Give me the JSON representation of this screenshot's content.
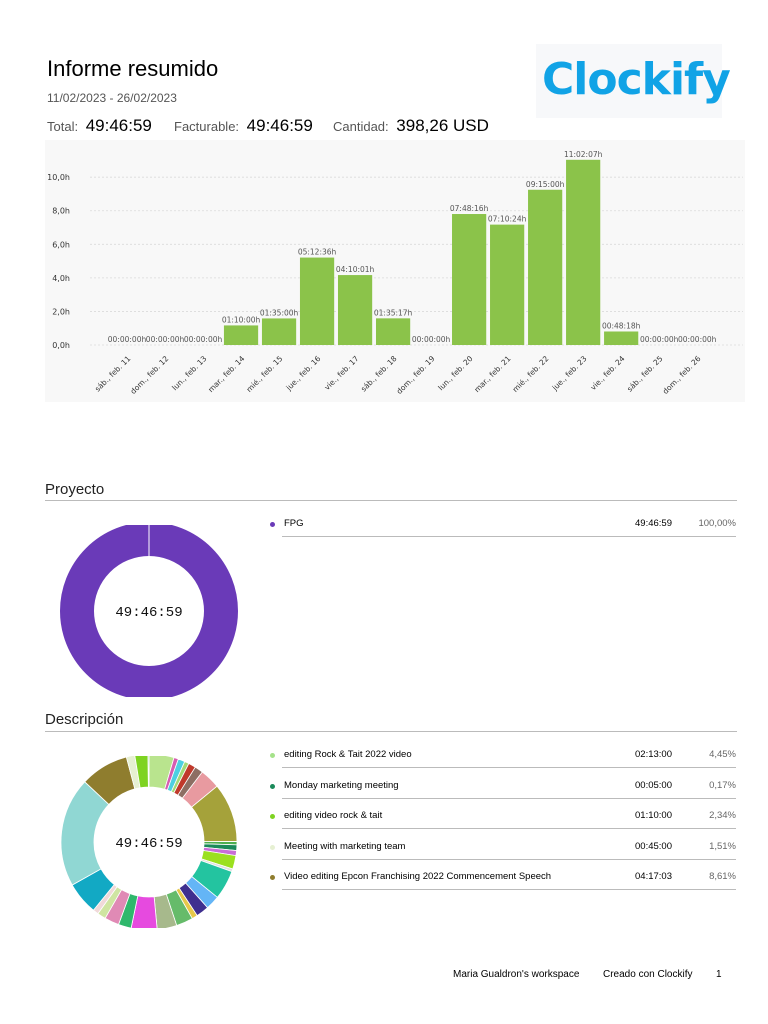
{
  "header": {
    "title": "Informe resumido",
    "date_range": "11/02/2023 - 26/02/2023",
    "total_label": "Total:",
    "total_value": "49:46:59",
    "billable_label": "Facturable:",
    "billable_value": "49:46:59",
    "amount_label": "Cantidad:",
    "amount_value": "398,26 USD",
    "logo_text": "Clockify"
  },
  "chart_data": {
    "type": "bar",
    "categories": [
      "sáb., feb. 11",
      "dom., feb. 12",
      "lun., feb. 13",
      "mar., feb. 14",
      "mié., feb. 15",
      "jue., feb. 16",
      "vie., feb. 17",
      "sáb., feb. 18",
      "dom., feb. 19",
      "lun., feb. 20",
      "mar., feb. 21",
      "mié., feb. 22",
      "jue., feb. 23",
      "vie., feb. 24",
      "sáb., feb. 25",
      "dom., feb. 26"
    ],
    "values": [
      0,
      0,
      0,
      1.1667,
      1.5833,
      5.21,
      4.1669,
      1.5881,
      0,
      7.8044,
      7.1733,
      9.25,
      11.0353,
      0.805,
      0,
      0
    ],
    "data_labels": [
      "00:00:00h",
      "00:00:00h",
      "00:00:00h",
      "01:10:00h",
      "01:35:00h",
      "05:12:36h",
      "04:10:01h",
      "01:35:17h",
      "00:00:00h",
      "07:48:16h",
      "07:10:24h",
      "09:15:00h",
      "11:02:07h",
      "00:48:18h",
      "00:00:00h",
      "00:00:00h"
    ],
    "y_ticks": [
      "0,0h",
      "2,0h",
      "4,0h",
      "6,0h",
      "8,0h",
      "10,0h"
    ],
    "ylim": [
      0,
      11.5
    ],
    "bar_color": "#8bc34a",
    "grid": true
  },
  "project_section": {
    "title": "Proyecto",
    "center_text": "49:46:59",
    "items": [
      {
        "name": "FPG",
        "duration": "49:46:59",
        "percent": "100,00%",
        "color": "#6a3ab8",
        "value": 100
      }
    ]
  },
  "description_section": {
    "title": "Descripción",
    "center_text": "49:46:59",
    "items": [
      {
        "name": "editing Rock & Tait 2022 video",
        "duration": "02:13:00",
        "percent": "4,45%",
        "color": "#a5e28a"
      },
      {
        "name": "Monday marketing meeting",
        "duration": "00:05:00",
        "percent": "0,17%",
        "color": "#1b8a5a"
      },
      {
        "name": "editing video rock & tait",
        "duration": "01:10:00",
        "percent": "2,34%",
        "color": "#7ed321"
      },
      {
        "name": "Meeting with marketing team",
        "duration": "00:45:00",
        "percent": "1,51%",
        "color": "#e6f0d2"
      },
      {
        "name": "Video editing Epcon Franchising 2022 Commencement Speech",
        "duration": "04:17:03",
        "percent": "8,61%",
        "color": "#8f7d2e"
      }
    ],
    "donut_segments": [
      {
        "value": 4.45,
        "color": "#b9e48e"
      },
      {
        "value": 0.8,
        "color": "#d65db1"
      },
      {
        "value": 1.2,
        "color": "#4dd0e1"
      },
      {
        "value": 0.8,
        "color": "#a3d977"
      },
      {
        "value": 1.3,
        "color": "#c0392b"
      },
      {
        "value": 1.5,
        "color": "#8d6e63"
      },
      {
        "value": 3.6,
        "color": "#e89aa0"
      },
      {
        "value": 10.5,
        "color": "#a5a23a"
      },
      {
        "value": 0.6,
        "color": "#4caf50"
      },
      {
        "value": 1.0,
        "color": "#1b8a5a"
      },
      {
        "value": 0.9,
        "color": "#c86dd7"
      },
      {
        "value": 2.4,
        "color": "#9be01f"
      },
      {
        "value": 0.5,
        "color": "#e0e0e0"
      },
      {
        "value": 5.2,
        "color": "#23c4a0"
      },
      {
        "value": 2.5,
        "color": "#64b5f6"
      },
      {
        "value": 2.3,
        "color": "#3f2f8f"
      },
      {
        "value": 1.0,
        "color": "#e6c84a"
      },
      {
        "value": 3.0,
        "color": "#66bb6a"
      },
      {
        "value": 3.5,
        "color": "#a7b98c"
      },
      {
        "value": 4.6,
        "color": "#e64adf"
      },
      {
        "value": 2.3,
        "color": "#2fb86c"
      },
      {
        "value": 2.6,
        "color": "#e08ab5"
      },
      {
        "value": 1.5,
        "color": "#cfe5a2"
      },
      {
        "value": 1.0,
        "color": "#f0d9d9"
      },
      {
        "value": 5.8,
        "color": "#12a9c4"
      },
      {
        "value": 19.5,
        "color": "#90d7d3"
      },
      {
        "value": 8.61,
        "color": "#8f7d2e"
      },
      {
        "value": 1.51,
        "color": "#e6f0d2"
      },
      {
        "value": 2.34,
        "color": "#7ed321"
      },
      {
        "value": 0.17,
        "color": "#1b8a5a"
      }
    ]
  },
  "footer": {
    "workspace": "Maria Gualdron's workspace",
    "created_with": "Creado con Clockify",
    "page": "1"
  }
}
